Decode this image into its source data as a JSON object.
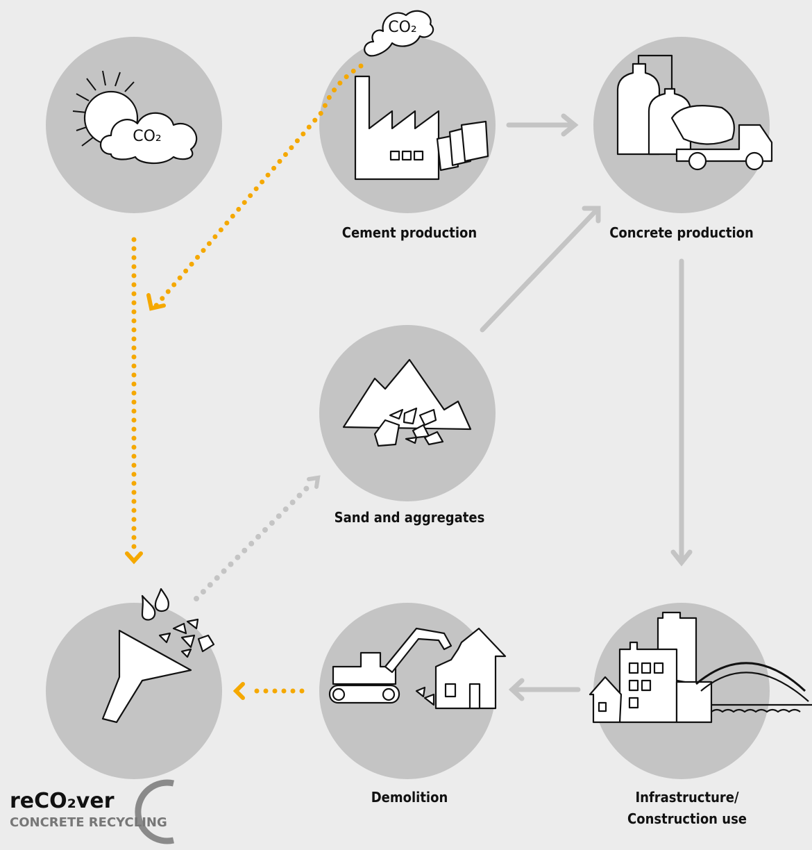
{
  "nodes": [
    {
      "label": "Cement production"
    },
    {
      "label": "Concrete production"
    },
    {
      "label": "Sand and aggregates"
    },
    {
      "label": "Demolition"
    },
    {
      "label": [
        "Infrastructure/",
        "Construction use"
      ]
    }
  ],
  "co2": [
    "CO₂",
    "CO₂"
  ],
  "logo": {
    "name": "reCO₂ver",
    "tagline": "CONCRETE RECYCLING"
  }
}
